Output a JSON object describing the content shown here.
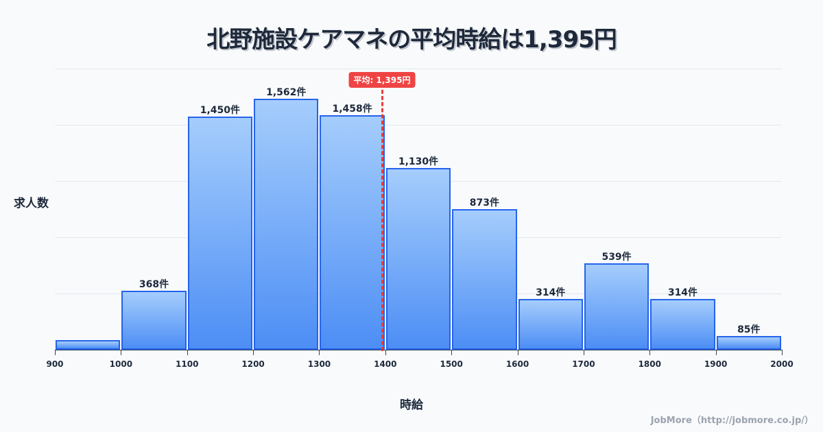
{
  "title": "北野施設ケアマネの平均時給は1,395円",
  "axis": {
    "ylabel": "求人数",
    "xlabel": "時給"
  },
  "mean_badge": "平均: 1,395円",
  "credit": "JobMore（http://jobmore.co.jp/）",
  "colors": {
    "bar_border": "#2563eb",
    "bar_top": "#a5cdfc",
    "bar_bottom": "#4d8ef5",
    "mean_line": "#e53e3e",
    "background": "#f8fafc"
  },
  "chart_data": {
    "type": "bar",
    "title": "北野施設ケアマネの平均時給は1,395円",
    "xlabel": "時給",
    "ylabel": "求人数",
    "categories": [
      "900-1000",
      "1000-1100",
      "1100-1200",
      "1200-1300",
      "1300-1400",
      "1400-1500",
      "1500-1600",
      "1600-1700",
      "1700-1800",
      "1800-1900",
      "1900-2000"
    ],
    "bin_edges": [
      900,
      1000,
      1100,
      1200,
      1300,
      1400,
      1500,
      1600,
      1700,
      1800,
      1900,
      2000
    ],
    "values": [
      60,
      368,
      1450,
      1562,
      1458,
      1130,
      873,
      314,
      539,
      314,
      85
    ],
    "labels": [
      "",
      "368件",
      "1,450件",
      "1,562件",
      "1,458件",
      "1,130件",
      "873件",
      "314件",
      "539件",
      "314件",
      "85件"
    ],
    "ylim": [
      0,
      1750
    ],
    "grid": true,
    "annotations": [
      {
        "type": "vline",
        "x": 1395,
        "label": "平均: 1,395円"
      }
    ]
  }
}
